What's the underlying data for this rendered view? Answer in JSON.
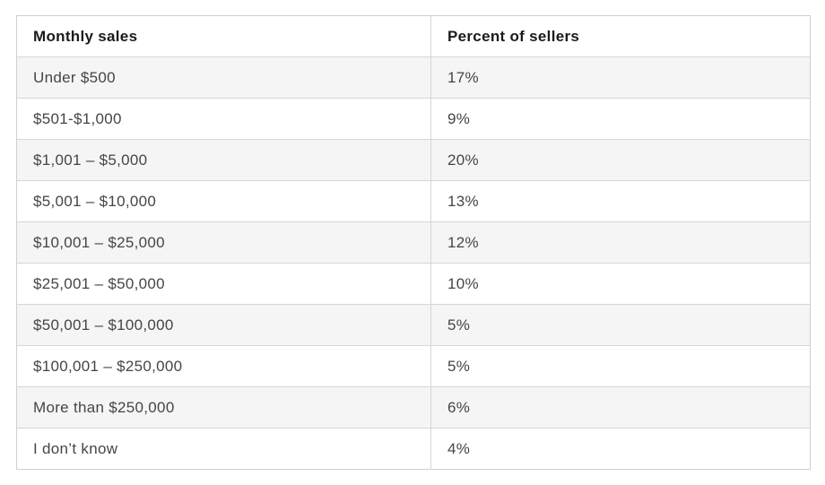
{
  "table": {
    "columns": [
      "Monthly sales",
      "Percent of sellers"
    ],
    "rows": [
      {
        "monthly_sales": "Under $500",
        "percent_of_sellers": "17%"
      },
      {
        "monthly_sales": "$501-$1,000",
        "percent_of_sellers": "9%"
      },
      {
        "monthly_sales": "$1,001 – $5,000",
        "percent_of_sellers": "20%"
      },
      {
        "monthly_sales": "$5,001 – $10,000",
        "percent_of_sellers": "13%"
      },
      {
        "monthly_sales": "$10,001 – $25,000",
        "percent_of_sellers": "12%"
      },
      {
        "monthly_sales": "$25,001 – $50,000",
        "percent_of_sellers": "10%"
      },
      {
        "monthly_sales": "$50,001 – $100,000",
        "percent_of_sellers": "5%"
      },
      {
        "monthly_sales": "$100,001 – $250,000",
        "percent_of_sellers": "5%"
      },
      {
        "monthly_sales": "More than $250,000",
        "percent_of_sellers": "6%"
      },
      {
        "monthly_sales": "I don’t know",
        "percent_of_sellers": "4%"
      }
    ]
  },
  "chart_data": {
    "type": "table",
    "title": "",
    "columns": [
      "Monthly sales",
      "Percent of sellers"
    ],
    "categories": [
      "Under $500",
      "$501-$1,000",
      "$1,001 – $5,000",
      "$5,001 – $10,000",
      "$10,001 – $25,000",
      "$25,001 – $50,000",
      "$50,001 – $100,000",
      "$100,001 – $250,000",
      "More than $250,000",
      "I don’t know"
    ],
    "values": [
      17,
      9,
      20,
      13,
      12,
      10,
      5,
      5,
      6,
      4
    ],
    "unit": "%",
    "layout": {
      "zebra_striping": true,
      "stripe_rows": "odd",
      "grid": "horizontal-and-column-divider"
    }
  },
  "colors": {
    "background": "#ffffff",
    "border": "#d6d6d6",
    "outer_border": "#cfcfcf",
    "stripe": "#f5f5f5",
    "header_text": "#1b1b1b",
    "body_text": "#454545"
  }
}
